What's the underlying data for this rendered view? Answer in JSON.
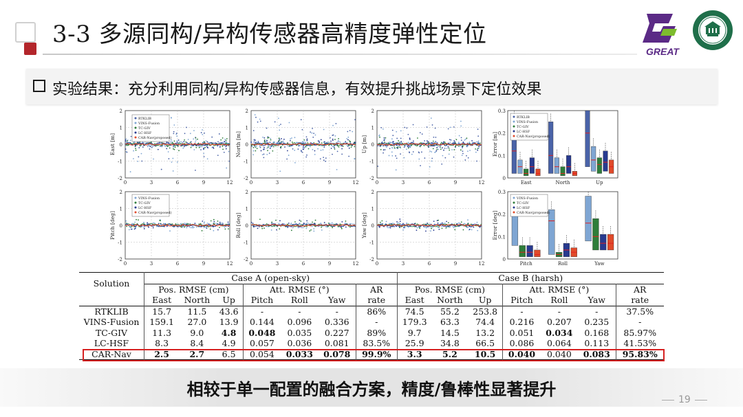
{
  "header": {
    "title": "3-3 多源同构/异构传感器高精度弹性定位",
    "logo_great_text": "GREAT",
    "logo_seal_text": "WUHAN UNIVERSITY"
  },
  "subtitle": {
    "text": "实验结果：充分利用同构/异构传感器信息，有效提升挑战场景下定位效果"
  },
  "colors": {
    "accent_red": "#b3262b",
    "great_purple": "#5b2a86",
    "great_green": "#7dbb2e",
    "seal_green": "#1f6f4a",
    "highlight_red": "#d62020",
    "rtklib": "#4a63a8",
    "vins": "#7fa6d3",
    "tcgiv": "#2e7d3a",
    "lchsf": "#283a8f",
    "carnav": "#e04a2a"
  },
  "plots": {
    "top_row": [
      {
        "ylabel": "East [m]",
        "yticks": [
          "2",
          "1",
          "0",
          "-1",
          "-2"
        ],
        "xticks": [
          "0",
          "3",
          "6",
          "9",
          "12"
        ]
      },
      {
        "ylabel": "North [m]",
        "yticks": [
          "2",
          "1",
          "0",
          "-1",
          "-2"
        ],
        "xticks": [
          "0",
          "3",
          "6",
          "9",
          "12"
        ]
      },
      {
        "ylabel": "Up [m]",
        "yticks": [
          "2",
          "1",
          "0",
          "-1",
          "-2"
        ],
        "xticks": [
          "0",
          "3",
          "6",
          "9",
          "12"
        ]
      }
    ],
    "bottom_row": [
      {
        "ylabel": "Pitch [deg]",
        "yticks": [
          "2",
          "1",
          "0",
          "-1",
          "-2"
        ],
        "xticks": [
          "0",
          "3",
          "6",
          "9",
          "12"
        ]
      },
      {
        "ylabel": "Roll [deg]",
        "yticks": [
          "2",
          "1",
          "0",
          "-1",
          "-2"
        ],
        "xticks": [
          "0",
          "3",
          "6",
          "9",
          "12"
        ]
      },
      {
        "ylabel": "Yaw [deg]",
        "yticks": [
          "2",
          "1",
          "0",
          "-1",
          "-2"
        ],
        "xticks": [
          "0",
          "3",
          "6",
          "9",
          "12"
        ]
      }
    ],
    "box_top": {
      "ylabel": "Error [m]",
      "yticks": [
        "0.3",
        "0.2",
        "0.1",
        "0"
      ],
      "xticks": [
        "East",
        "North",
        "Up"
      ]
    },
    "box_bottom": {
      "ylabel": "Error [deg]",
      "yticks": [
        "0.3",
        "0.2",
        "0.1",
        "0"
      ],
      "xticks": [
        "Pitch",
        "Roll",
        "Yaw"
      ]
    },
    "legend_position": [
      "RTKLIB",
      "VINS-Fusion",
      "TC-GIV",
      "LC-HSF",
      "CAR-Nav(proposed)"
    ],
    "legend_attitude": [
      "VINS-Fusion",
      "TC-GIV",
      "LC-HSF",
      "CAR-Nav(proposed)"
    ]
  },
  "table": {
    "solution_header": "Solution",
    "case_a": "Case A (open-sky)",
    "case_b": "Case B (harsh)",
    "pos_rmse": "Pos. RMSE (cm)",
    "att_rmse": "Att. RMSE (°)",
    "ar_top": "AR",
    "ar_bottom": "rate",
    "sub": [
      "East",
      "North",
      "Up",
      "Pitch",
      "Roll",
      "Yaw"
    ],
    "rows": [
      {
        "name": "RTKLIB",
        "a": [
          "15.7",
          "11.5",
          "43.6",
          "-",
          "-",
          "-",
          "86%"
        ],
        "b": [
          "74.5",
          "55.2",
          "253.8",
          "-",
          "-",
          "-",
          "37.5%"
        ]
      },
      {
        "name": "VINS-Fusion",
        "a": [
          "159.1",
          "27.0",
          "13.9",
          "0.144",
          "0.096",
          "0.336",
          "-"
        ],
        "b": [
          "179.3",
          "63.3",
          "74.4",
          "0.216",
          "0.207",
          "0.235",
          "-"
        ]
      },
      {
        "name": "TC-GIV",
        "a": [
          "11.3",
          "9.0",
          "4.8",
          "0.048",
          "0.035",
          "0.227",
          "89%"
        ],
        "b": [
          "9.7",
          "14.5",
          "13.2",
          "0.051",
          "0.034",
          "0.168",
          "85.97%"
        ]
      },
      {
        "name": "LC-HSF",
        "a": [
          "8.3",
          "8.4",
          "4.9",
          "0.057",
          "0.036",
          "0.081",
          "83.5%"
        ],
        "b": [
          "25.9",
          "34.8",
          "66.5",
          "0.086",
          "0.064",
          "0.113",
          "41.53%"
        ]
      },
      {
        "name": "CAR-Nav",
        "a": [
          "2.5",
          "2.7",
          "6.5",
          "0.054",
          "0.033",
          "0.078",
          "99.9%"
        ],
        "b": [
          "3.3",
          "5.2",
          "10.5",
          "0.040",
          "0.040",
          "0.083",
          "95.83%"
        ]
      }
    ]
  },
  "conclusion": "相较于单一配置的融合方案，精度/鲁棒性显著提升",
  "page_number": "19"
}
